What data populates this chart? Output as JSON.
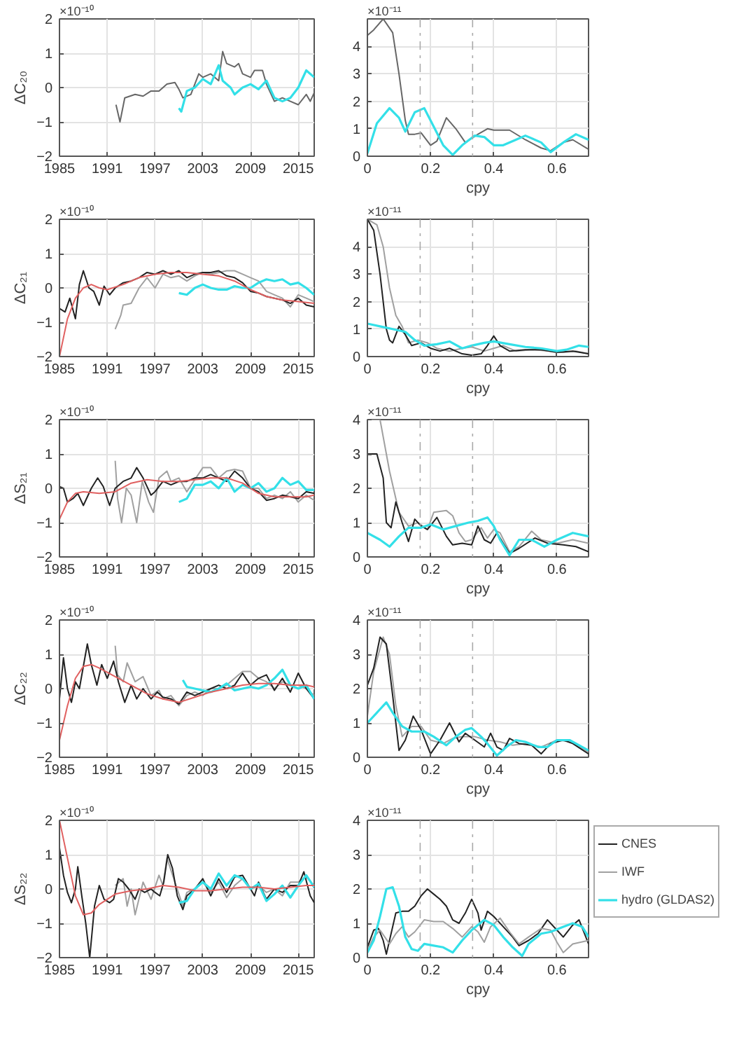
{
  "chart_data": [
    {
      "type": "line",
      "ylabel": "ΔC₂₀",
      "annotations": [
        "×10⁻¹⁰"
      ],
      "xlim": [
        1985,
        2017
      ],
      "xticks": [
        1985,
        1991,
        1997,
        2003,
        2009,
        2015
      ],
      "ylim": [
        -2,
        2
      ],
      "yticks": [
        -2,
        -1,
        0,
        1,
        2
      ],
      "grid": true,
      "series": [
        {
          "color": "#666666",
          "x": [
            1992.1,
            1992.6,
            1993.2,
            1994.5,
            1995.5,
            1996.5,
            1997.5,
            1998.5,
            1999.5,
            2000,
            2000.5,
            2001.5,
            2002.5,
            2003,
            2004,
            2005,
            2005.5,
            2006,
            2007,
            2007.5,
            2008,
            2009,
            2009.5,
            2010.5,
            2011,
            2012,
            2013,
            2014,
            2015,
            2016,
            2016.5,
            2017
          ],
          "values": [
            -0.5,
            -1.0,
            -0.3,
            -0.2,
            -0.25,
            -0.1,
            -0.1,
            0.1,
            0.15,
            -0.05,
            -0.3,
            -0.2,
            0.4,
            0.3,
            0.4,
            0.2,
            1.05,
            0.7,
            0.6,
            0.7,
            0.4,
            0.3,
            0.5,
            0.5,
            0.1,
            -0.4,
            -0.3,
            -0.4,
            -0.5,
            -0.2,
            -0.4,
            -0.15
          ]
        },
        {
          "color": "#33e0e8",
          "x": [
            2000,
            2000.3,
            2001,
            2002,
            2003,
            2004,
            2005,
            2005.5,
            2006.5,
            2007,
            2008,
            2009,
            2010,
            2011,
            2012,
            2013,
            2014,
            2015,
            2016,
            2017
          ],
          "values": [
            -0.6,
            -0.7,
            -0.1,
            0.0,
            0.25,
            0.1,
            0.65,
            0.2,
            0.0,
            -0.2,
            0.0,
            0.1,
            -0.05,
            0.2,
            -0.3,
            -0.4,
            -0.3,
            0.0,
            0.5,
            0.3
          ]
        }
      ]
    },
    {
      "type": "line",
      "xlabel": "cpy",
      "annotations": [
        "×10⁻¹¹"
      ],
      "xlim": [
        0,
        0.7
      ],
      "xticks": [
        0,
        0.2,
        0.4,
        0.6
      ],
      "ylim": [
        0,
        5
      ],
      "yticks": [
        0,
        1,
        2,
        3,
        4
      ],
      "grid": true,
      "ref_lines": [
        {
          "axis": "x",
          "value": 0.167,
          "color": "#aaaaaa",
          "line_style": "dashed"
        },
        {
          "axis": "x",
          "value": 0.333,
          "color": "#aaaaaa",
          "line_style": "dashed"
        }
      ],
      "series": [
        {
          "color": "#666666",
          "x": [
            0,
            0.02,
            0.05,
            0.08,
            0.1,
            0.12,
            0.13,
            0.15,
            0.17,
            0.2,
            0.22,
            0.25,
            0.28,
            0.31,
            0.35,
            0.38,
            0.4,
            0.45,
            0.5,
            0.55,
            0.58,
            0.62,
            0.65,
            0.7
          ],
          "values": [
            4.4,
            4.6,
            5.0,
            4.5,
            3.0,
            1.3,
            0.8,
            0.8,
            0.85,
            0.4,
            0.55,
            1.4,
            1.0,
            0.5,
            0.8,
            1.0,
            0.95,
            0.95,
            0.6,
            0.3,
            0.2,
            0.5,
            0.6,
            0.25
          ]
        },
        {
          "color": "#33e0e8",
          "x": [
            0,
            0.03,
            0.07,
            0.1,
            0.12,
            0.15,
            0.18,
            0.2,
            0.24,
            0.27,
            0.3,
            0.34,
            0.37,
            0.4,
            0.43,
            0.47,
            0.5,
            0.55,
            0.58,
            0.62,
            0.66,
            0.7
          ],
          "values": [
            0.1,
            1.2,
            1.75,
            1.4,
            0.9,
            1.6,
            1.75,
            1.3,
            0.4,
            0.05,
            0.4,
            0.75,
            0.7,
            0.4,
            0.4,
            0.6,
            0.75,
            0.5,
            0.15,
            0.5,
            0.8,
            0.6
          ]
        }
      ]
    },
    {
      "type": "line",
      "ylabel": "ΔC₂₁",
      "annotations": [
        "×10⁻¹⁰"
      ],
      "xlim": [
        1985,
        2017
      ],
      "xticks": [
        1985,
        1991,
        1997,
        2003,
        2009,
        2015
      ],
      "ylim": [
        -2,
        2
      ],
      "yticks": [
        -2,
        -1,
        0,
        1,
        2
      ],
      "grid": true,
      "series": [
        {
          "color": "#a0a0a0",
          "x": [
            1992,
            1992.7,
            1993,
            1994,
            1995,
            1996,
            1997,
            1998,
            1999,
            2000,
            2001,
            2002,
            2003,
            2004,
            2005,
            2006,
            2007,
            2008,
            2009,
            2010,
            2011,
            2012,
            2013,
            2014,
            2015,
            2016,
            2017
          ],
          "values": [
            -1.2,
            -0.8,
            -0.5,
            -0.45,
            0.0,
            0.3,
            0.0,
            0.4,
            0.3,
            0.35,
            0.2,
            0.35,
            0.45,
            0.4,
            0.45,
            0.5,
            0.5,
            0.4,
            0.3,
            0.2,
            -0.1,
            -0.2,
            -0.3,
            -0.55,
            -0.2,
            -0.3,
            -0.4
          ]
        },
        {
          "color": "#222222",
          "x": [
            1985,
            1985.7,
            1986.3,
            1987,
            1987.5,
            1988,
            1988.7,
            1989.3,
            1990,
            1990.6,
            1991.3,
            1992,
            1993,
            1994,
            1995,
            1996,
            1997,
            1998,
            1999,
            2000,
            2001,
            2002,
            2003,
            2004,
            2005,
            2006,
            2007,
            2008,
            2009,
            2010,
            2011,
            2012,
            2013,
            2014,
            2015,
            2016,
            2017
          ],
          "values": [
            -0.6,
            -0.7,
            -0.3,
            -0.9,
            0.1,
            0.5,
            0.0,
            -0.1,
            -0.5,
            0.05,
            -0.2,
            0.0,
            0.15,
            0.2,
            0.3,
            0.45,
            0.4,
            0.5,
            0.4,
            0.5,
            0.3,
            0.4,
            0.45,
            0.45,
            0.5,
            0.35,
            0.3,
            0.15,
            -0.1,
            -0.15,
            -0.25,
            -0.3,
            -0.35,
            -0.45,
            -0.3,
            -0.5,
            -0.55
          ]
        },
        {
          "color": "#33e0e8",
          "x": [
            2000,
            2001,
            2002,
            2003,
            2004,
            2005,
            2006,
            2007,
            2008,
            2009,
            2010,
            2011,
            2012,
            2013,
            2014,
            2015,
            2016,
            2017
          ],
          "values": [
            -0.15,
            -0.2,
            0.0,
            0.1,
            0.0,
            -0.05,
            -0.05,
            0.05,
            0.0,
            0.0,
            0.15,
            0.25,
            0.2,
            0.25,
            0.1,
            0.15,
            0.0,
            -0.2
          ]
        },
        {
          "color": "#e06060",
          "x": [
            1985,
            1986,
            1987,
            1988,
            1989,
            1990,
            1991,
            1993,
            1995,
            1997,
            1999,
            2001,
            2003,
            2005,
            2007,
            2009,
            2011,
            2013,
            2015,
            2017
          ],
          "values": [
            -2.0,
            -0.9,
            -0.3,
            0.0,
            0.1,
            0.0,
            -0.05,
            0.1,
            0.3,
            0.4,
            0.45,
            0.45,
            0.4,
            0.35,
            0.2,
            -0.05,
            -0.25,
            -0.35,
            -0.4,
            -0.45
          ]
        }
      ]
    },
    {
      "type": "line",
      "xlabel": "cpy",
      "annotations": [
        "×10⁻¹¹"
      ],
      "xlim": [
        0,
        0.7
      ],
      "xticks": [
        0,
        0.2,
        0.4,
        0.6
      ],
      "ylim": [
        0,
        5
      ],
      "yticks": [
        0,
        1,
        2,
        3,
        4
      ],
      "grid": true,
      "ref_lines": [
        {
          "axis": "x",
          "value": 0.167,
          "color": "#aaaaaa",
          "line_style": "dashed"
        },
        {
          "axis": "x",
          "value": 0.333,
          "color": "#aaaaaa",
          "line_style": "dashed"
        }
      ],
      "series": [
        {
          "color": "#a0a0a0",
          "x": [
            0,
            0.03,
            0.05,
            0.07,
            0.09,
            0.11,
            0.13,
            0.16,
            0.19,
            0.22,
            0.26,
            0.3,
            0.33,
            0.37,
            0.4,
            0.43,
            0.47,
            0.52,
            0.58,
            0.62,
            0.66,
            0.7
          ],
          "values": [
            5.0,
            4.8,
            4.0,
            2.5,
            1.5,
            1.1,
            0.5,
            0.6,
            0.5,
            0.3,
            0.2,
            0.3,
            0.35,
            0.2,
            0.3,
            0.4,
            0.2,
            0.25,
            0.2,
            0.15,
            0.2,
            0.1
          ]
        },
        {
          "color": "#222222",
          "x": [
            0,
            0.02,
            0.04,
            0.06,
            0.07,
            0.08,
            0.1,
            0.12,
            0.14,
            0.17,
            0.2,
            0.23,
            0.26,
            0.3,
            0.33,
            0.36,
            0.38,
            0.4,
            0.42,
            0.45,
            0.5,
            0.55,
            0.6,
            0.65,
            0.7
          ],
          "values": [
            5.0,
            4.6,
            3.0,
            1.0,
            0.6,
            0.5,
            1.1,
            0.8,
            0.4,
            0.5,
            0.3,
            0.2,
            0.3,
            0.1,
            0.05,
            0.1,
            0.4,
            0.75,
            0.4,
            0.2,
            0.25,
            0.25,
            0.15,
            0.2,
            0.1
          ]
        },
        {
          "color": "#33e0e8",
          "x": [
            0,
            0.04,
            0.08,
            0.12,
            0.15,
            0.18,
            0.22,
            0.26,
            0.3,
            0.33,
            0.37,
            0.4,
            0.45,
            0.5,
            0.55,
            0.6,
            0.63,
            0.67,
            0.7
          ],
          "values": [
            1.2,
            1.1,
            1.0,
            0.9,
            0.6,
            0.4,
            0.45,
            0.55,
            0.3,
            0.4,
            0.5,
            0.55,
            0.45,
            0.35,
            0.3,
            0.2,
            0.25,
            0.4,
            0.35
          ]
        }
      ]
    },
    {
      "type": "line",
      "ylabel": "ΔS₂₁",
      "annotations": [
        "×10⁻¹⁰"
      ],
      "xlim": [
        1985,
        2017
      ],
      "xticks": [
        1985,
        1991,
        1997,
        2003,
        2009,
        2015
      ],
      "ylim": [
        -2,
        2
      ],
      "yticks": [
        -2,
        -1,
        0,
        1,
        2
      ],
      "grid": true,
      "series": [
        {
          "color": "#a0a0a0",
          "x": [
            1992,
            1992.3,
            1992.8,
            1993.4,
            1994,
            1994.7,
            1995.4,
            1996.2,
            1996.8,
            1997.5,
            1998.5,
            1999,
            2000,
            2001,
            2002,
            2003,
            2004,
            2005,
            2006,
            2007,
            2008,
            2009,
            2010,
            2011,
            2012,
            2013,
            2014,
            2015,
            2016,
            2017
          ],
          "values": [
            0.8,
            -0.3,
            -1.0,
            0.0,
            -0.2,
            -1.0,
            0.2,
            -0.4,
            -0.7,
            0.3,
            0.5,
            0.2,
            0.3,
            -0.1,
            0.25,
            0.6,
            0.6,
            0.3,
            0.5,
            0.55,
            0.5,
            0.0,
            0.0,
            -0.3,
            -0.2,
            -0.3,
            -0.1,
            -0.4,
            -0.2,
            -0.35
          ]
        },
        {
          "color": "#222222",
          "x": [
            1985,
            1985.5,
            1986,
            1986.7,
            1987.3,
            1988,
            1989,
            1989.8,
            1990.5,
            1991.3,
            1992,
            1993,
            1994,
            1994.7,
            1995.5,
            1996.5,
            1997,
            1998,
            1999,
            2000,
            2001,
            2002,
            2003,
            2004,
            2005,
            2006,
            2007,
            2008,
            2009,
            2010,
            2011,
            2012,
            2013,
            2014,
            2015,
            2016,
            2017
          ],
          "values": [
            0.05,
            0.0,
            -0.4,
            -0.3,
            -0.15,
            -0.5,
            0.0,
            0.3,
            0.05,
            -0.5,
            0.0,
            0.2,
            0.3,
            0.6,
            0.3,
            -0.2,
            -0.1,
            0.2,
            0.1,
            0.2,
            0.2,
            0.3,
            0.3,
            0.4,
            0.3,
            0.2,
            0.5,
            0.3,
            0.0,
            -0.1,
            -0.35,
            -0.3,
            -0.2,
            -0.25,
            -0.3,
            -0.1,
            -0.15
          ]
        },
        {
          "color": "#33e0e8",
          "x": [
            2000,
            2001,
            2002,
            2003,
            2004,
            2005,
            2006,
            2007,
            2008,
            2009,
            2010,
            2011,
            2012,
            2013,
            2014,
            2015,
            2016,
            2017
          ],
          "values": [
            -0.4,
            -0.3,
            0.1,
            0.1,
            0.2,
            0.0,
            0.3,
            -0.1,
            0.1,
            0.0,
            0.15,
            -0.1,
            0.0,
            0.3,
            0.1,
            0.2,
            -0.05,
            -0.05
          ]
        },
        {
          "color": "#e06060",
          "x": [
            1985,
            1986,
            1987,
            1988,
            1990,
            1992,
            1994,
            1996,
            1998,
            2000,
            2002,
            2004,
            2006,
            2008,
            2010,
            2012,
            2014,
            2016,
            2017
          ],
          "values": [
            -0.9,
            -0.4,
            -0.15,
            -0.1,
            -0.15,
            -0.1,
            0.15,
            0.25,
            0.2,
            0.2,
            0.25,
            0.3,
            0.3,
            0.15,
            -0.15,
            -0.25,
            -0.25,
            -0.25,
            -0.2
          ]
        }
      ]
    },
    {
      "type": "line",
      "xlabel": "cpy",
      "annotations": [
        "×10⁻¹¹"
      ],
      "xlim": [
        0,
        0.7
      ],
      "xticks": [
        0,
        0.2,
        0.4,
        0.6
      ],
      "ylim": [
        0,
        4
      ],
      "yticks": [
        0,
        1,
        2,
        3,
        4
      ],
      "grid": true,
      "ref_lines": [
        {
          "axis": "x",
          "value": 0.167,
          "color": "#aaaaaa",
          "line_style": "dashed"
        },
        {
          "axis": "x",
          "value": 0.333,
          "color": "#aaaaaa",
          "line_style": "dashed"
        }
      ],
      "series": [
        {
          "color": "#a0a0a0",
          "x": [
            0,
            0.04,
            0.07,
            0.1,
            0.13,
            0.16,
            0.19,
            0.21,
            0.25,
            0.27,
            0.29,
            0.31,
            0.33,
            0.36,
            0.38,
            0.4,
            0.42,
            0.45,
            0.48,
            0.52,
            0.55,
            0.6,
            0.65,
            0.7
          ],
          "values": [
            4.0,
            4.0,
            2.5,
            1.3,
            0.9,
            1.0,
            0.8,
            1.3,
            1.35,
            1.2,
            0.7,
            0.45,
            0.5,
            0.85,
            0.55,
            0.8,
            0.7,
            0.15,
            0.3,
            0.75,
            0.5,
            0.4,
            0.5,
            0.4
          ]
        },
        {
          "color": "#222222",
          "x": [
            0,
            0.03,
            0.05,
            0.06,
            0.075,
            0.09,
            0.11,
            0.13,
            0.15,
            0.17,
            0.19,
            0.22,
            0.25,
            0.27,
            0.3,
            0.33,
            0.35,
            0.37,
            0.39,
            0.41,
            0.43,
            0.45,
            0.48,
            0.53,
            0.57,
            0.62,
            0.66,
            0.7
          ],
          "values": [
            3.0,
            3.0,
            2.3,
            1.0,
            0.85,
            1.6,
            1.0,
            0.45,
            1.1,
            0.9,
            0.8,
            1.15,
            0.6,
            0.35,
            0.4,
            0.35,
            0.9,
            0.5,
            0.4,
            0.7,
            0.4,
            0.1,
            0.25,
            0.55,
            0.4,
            0.35,
            0.3,
            0.15
          ]
        },
        {
          "color": "#33e0e8",
          "x": [
            0,
            0.04,
            0.07,
            0.1,
            0.13,
            0.17,
            0.2,
            0.24,
            0.28,
            0.32,
            0.35,
            0.38,
            0.4,
            0.42,
            0.45,
            0.48,
            0.52,
            0.56,
            0.6,
            0.65,
            0.7
          ],
          "values": [
            0.7,
            0.5,
            0.3,
            0.6,
            0.85,
            0.85,
            0.95,
            0.8,
            0.9,
            1.0,
            1.05,
            1.15,
            0.9,
            0.5,
            0.05,
            0.5,
            0.5,
            0.3,
            0.5,
            0.7,
            0.6
          ]
        }
      ]
    },
    {
      "type": "line",
      "ylabel": "ΔC₂₂",
      "annotations": [
        "×10⁻¹⁰"
      ],
      "xlim": [
        1985,
        2017
      ],
      "xticks": [
        1985,
        1991,
        1997,
        2003,
        2009,
        2015
      ],
      "ylim": [
        -2,
        2
      ],
      "yticks": [
        -2,
        -1,
        0,
        1,
        2
      ],
      "grid": true,
      "series": [
        {
          "color": "#a0a0a0",
          "x": [
            1992,
            1992.3,
            1993,
            1993.5,
            1994.5,
            1995.5,
            1996.5,
            1997.5,
            1998,
            1999,
            2000,
            2001,
            2002,
            2003,
            2004,
            2005,
            2006,
            2007,
            2008,
            2009,
            2010,
            2011,
            2012,
            2013,
            2014,
            2015,
            2016,
            2017
          ],
          "values": [
            1.25,
            0.4,
            0.2,
            0.75,
            0.2,
            0.35,
            -0.2,
            -0.05,
            -0.3,
            -0.2,
            -0.5,
            -0.2,
            -0.1,
            -0.2,
            0.0,
            0.0,
            0.1,
            0.3,
            0.5,
            0.5,
            0.3,
            0.2,
            0.0,
            0.2,
            0.1,
            0.1,
            0.0,
            -0.2
          ]
        },
        {
          "color": "#222222",
          "x": [
            1985,
            1985.5,
            1986,
            1986.5,
            1987,
            1987.5,
            1988.5,
            1989,
            1989.7,
            1990.3,
            1991,
            1991.8,
            1992.4,
            1993.2,
            1994,
            1994.7,
            1995.5,
            1996.5,
            1997.3,
            1998,
            1999,
            2000,
            2001,
            2002,
            2003,
            2004,
            2005,
            2006,
            2007,
            2008,
            2009,
            2010,
            2011,
            2012,
            2013,
            2014,
            2015,
            2016,
            2017
          ],
          "values": [
            -0.3,
            0.9,
            0.0,
            -0.4,
            0.2,
            0.0,
            1.3,
            0.7,
            0.1,
            0.7,
            0.3,
            0.8,
            0.2,
            -0.4,
            0.1,
            -0.3,
            0.0,
            -0.3,
            -0.1,
            -0.25,
            -0.3,
            -0.45,
            -0.1,
            -0.2,
            -0.1,
            0.0,
            0.1,
            0.0,
            0.1,
            0.45,
            0.1,
            0.3,
            0.4,
            -0.05,
            0.3,
            -0.1,
            0.45,
            0.0,
            -0.3
          ]
        },
        {
          "color": "#33e0e8",
          "x": [
            2000.5,
            2001,
            2002,
            2003,
            2004,
            2005,
            2006,
            2007,
            2008,
            2009,
            2010,
            2011,
            2012,
            2013,
            2014,
            2015,
            2016,
            2017
          ],
          "values": [
            0.25,
            0.05,
            0.0,
            -0.05,
            -0.1,
            0.0,
            0.15,
            -0.05,
            0.0,
            0.05,
            0.0,
            0.1,
            0.3,
            0.55,
            0.1,
            0.0,
            0.1,
            -0.3
          ]
        },
        {
          "color": "#e06060",
          "x": [
            1985,
            1986,
            1987,
            1988,
            1989,
            1990,
            1992,
            1994,
            1996,
            1998,
            2000,
            2002,
            2004,
            2006,
            2008,
            2010,
            2012,
            2014,
            2016,
            2017
          ],
          "values": [
            -1.5,
            -0.5,
            0.3,
            0.65,
            0.7,
            0.6,
            0.35,
            0.1,
            -0.15,
            -0.3,
            -0.4,
            -0.25,
            -0.1,
            0.0,
            0.1,
            0.15,
            0.15,
            0.1,
            0.1,
            0.05
          ]
        }
      ]
    },
    {
      "type": "line",
      "xlabel": "cpy",
      "annotations": [
        "×10⁻¹¹"
      ],
      "xlim": [
        0,
        0.7
      ],
      "xticks": [
        0,
        0.2,
        0.4,
        0.6
      ],
      "ylim": [
        0,
        4
      ],
      "yticks": [
        0,
        1,
        2,
        3,
        4
      ],
      "grid": true,
      "ref_lines": [
        {
          "axis": "x",
          "value": 0.167,
          "color": "#aaaaaa",
          "line_style": "dashed"
        },
        {
          "axis": "x",
          "value": 0.333,
          "color": "#aaaaaa",
          "line_style": "dashed"
        }
      ],
      "series": [
        {
          "color": "#a0a0a0",
          "x": [
            0,
            0.02,
            0.05,
            0.07,
            0.09,
            0.11,
            0.14,
            0.17,
            0.2,
            0.24,
            0.27,
            0.3,
            0.34,
            0.38,
            0.42,
            0.46,
            0.5,
            0.55,
            0.6,
            0.65,
            0.7
          ],
          "values": [
            1.2,
            2.5,
            3.5,
            3.0,
            1.5,
            0.6,
            0.9,
            0.9,
            0.5,
            0.4,
            0.55,
            0.6,
            0.6,
            0.5,
            0.45,
            0.35,
            0.4,
            0.3,
            0.5,
            0.45,
            0.15
          ]
        },
        {
          "color": "#222222",
          "x": [
            0,
            0.02,
            0.04,
            0.06,
            0.08,
            0.1,
            0.12,
            0.145,
            0.17,
            0.2,
            0.23,
            0.26,
            0.29,
            0.31,
            0.34,
            0.37,
            0.39,
            0.41,
            0.43,
            0.45,
            0.48,
            0.52,
            0.55,
            0.58,
            0.62,
            0.65,
            0.7
          ],
          "values": [
            2.1,
            2.6,
            3.5,
            3.3,
            1.8,
            0.2,
            0.5,
            1.2,
            0.8,
            0.1,
            0.5,
            1.0,
            0.45,
            0.7,
            0.5,
            0.3,
            0.7,
            0.3,
            0.2,
            0.55,
            0.4,
            0.35,
            0.1,
            0.4,
            0.5,
            0.4,
            0.1
          ]
        },
        {
          "color": "#33e0e8",
          "x": [
            0,
            0.03,
            0.06,
            0.08,
            0.11,
            0.14,
            0.18,
            0.21,
            0.25,
            0.28,
            0.31,
            0.33,
            0.36,
            0.38,
            0.41,
            0.44,
            0.47,
            0.5,
            0.54,
            0.57,
            0.6,
            0.64,
            0.7
          ],
          "values": [
            1.0,
            1.3,
            1.6,
            1.3,
            0.9,
            0.75,
            0.75,
            0.6,
            0.35,
            0.6,
            0.8,
            0.85,
            0.6,
            0.4,
            0.05,
            0.3,
            0.5,
            0.45,
            0.3,
            0.3,
            0.5,
            0.5,
            0.2
          ]
        }
      ]
    },
    {
      "type": "line",
      "ylabel": "ΔS₂₂",
      "annotations": [
        "×10⁻¹⁰"
      ],
      "xlim": [
        1985,
        2017
      ],
      "xticks": [
        1985,
        1991,
        1997,
        2003,
        2009,
        2015
      ],
      "ylim": [
        -2,
        2
      ],
      "yticks": [
        -2,
        -1,
        0,
        1,
        2
      ],
      "grid": true,
      "series": [
        {
          "color": "#a0a0a0",
          "x": [
            1992,
            1993,
            1993.5,
            1994,
            1994.5,
            1995.5,
            1996.5,
            1997.5,
            1998,
            1998.5,
            1999.5,
            2000.5,
            2001,
            2002,
            2003,
            2004,
            2005,
            2006,
            2007,
            2008,
            2009,
            2010,
            2011,
            2012,
            2013,
            2014,
            2015,
            2016,
            2017
          ],
          "values": [
            0.1,
            0.3,
            -0.5,
            0.0,
            -0.75,
            0.2,
            -0.3,
            0.4,
            0.1,
            0.9,
            0.2,
            -0.5,
            -0.1,
            0.0,
            0.2,
            -0.1,
            0.2,
            -0.25,
            0.1,
            0.3,
            0.0,
            0.1,
            -0.1,
            0.0,
            -0.2,
            0.2,
            0.2,
            0.35,
            0.1
          ]
        },
        {
          "color": "#222222",
          "x": [
            1985,
            1985.5,
            1986,
            1986.5,
            1987,
            1987.3,
            1987.8,
            1988.3,
            1988.8,
            1989.4,
            1990,
            1990.6,
            1991.3,
            1991.8,
            1992.4,
            1993,
            1993.7,
            1994.5,
            1995,
            1995.7,
            1996.5,
            1997,
            1997.6,
            1998.1,
            1998.6,
            1999.2,
            1999.8,
            2000.5,
            2001,
            2002,
            2003,
            2004,
            2005,
            2006,
            2007,
            2008,
            2009,
            2009.5,
            2010,
            2011,
            2012,
            2013,
            2014,
            2015,
            2015.7,
            2016.5,
            2017
          ],
          "values": [
            1.2,
            0.4,
            -0.1,
            -0.4,
            0.0,
            0.65,
            -0.2,
            -1.0,
            -2.0,
            -0.5,
            0.1,
            -0.3,
            -0.4,
            -0.3,
            0.3,
            0.2,
            0.0,
            -0.3,
            0.0,
            -0.1,
            0.0,
            -0.1,
            -0.2,
            0.2,
            1.0,
            0.6,
            -0.2,
            -0.6,
            -0.2,
            0.0,
            0.3,
            -0.2,
            0.3,
            -0.1,
            0.35,
            0.4,
            0.0,
            -0.2,
            0.2,
            -0.3,
            0.0,
            -0.1,
            0.1,
            0.1,
            0.5,
            -0.2,
            -0.4
          ]
        },
        {
          "color": "#33e0e8",
          "x": [
            2000,
            2001,
            2002,
            2003,
            2004,
            2005,
            2006,
            2007,
            2008,
            2009,
            2010,
            2011,
            2012,
            2013,
            2014,
            2015,
            2016,
            2017
          ],
          "values": [
            -0.4,
            -0.35,
            0.0,
            0.2,
            0.0,
            0.45,
            0.1,
            0.4,
            0.3,
            0.0,
            0.15,
            -0.35,
            -0.15,
            0.1,
            -0.25,
            0.1,
            0.4,
            0.05
          ]
        },
        {
          "color": "#e06060",
          "x": [
            1985,
            1986,
            1987,
            1988,
            1989,
            1990,
            1992,
            1994,
            1996,
            1998,
            2000,
            2002,
            2004,
            2006,
            2008,
            2010,
            2012,
            2014,
            2016,
            2017
          ],
          "values": [
            2.0,
            0.9,
            -0.2,
            -0.75,
            -0.7,
            -0.45,
            -0.15,
            -0.05,
            0.0,
            0.1,
            0.05,
            -0.05,
            -0.05,
            0.0,
            0.05,
            0.05,
            0.0,
            0.05,
            0.1,
            0.1
          ]
        }
      ]
    },
    {
      "type": "line",
      "xlabel": "cpy",
      "annotations": [
        "×10⁻¹¹"
      ],
      "xlim": [
        0,
        0.7
      ],
      "xticks": [
        0,
        0.2,
        0.4,
        0.6
      ],
      "ylim": [
        0,
        4
      ],
      "yticks": [
        0,
        1,
        2,
        3,
        4
      ],
      "grid": true,
      "legend": "right",
      "ref_lines": [
        {
          "axis": "x",
          "value": 0.167,
          "color": "#aaaaaa",
          "line_style": "dashed"
        },
        {
          "axis": "x",
          "value": 0.333,
          "color": "#aaaaaa",
          "line_style": "dashed"
        }
      ],
      "series": [
        {
          "name": "CNES",
          "color": "#222222",
          "x": [
            0,
            0.02,
            0.035,
            0.05,
            0.06,
            0.07,
            0.09,
            0.11,
            0.13,
            0.15,
            0.17,
            0.19,
            0.21,
            0.23,
            0.25,
            0.27,
            0.29,
            0.31,
            0.33,
            0.35,
            0.36,
            0.38,
            0.4,
            0.43,
            0.46,
            0.48,
            0.51,
            0.54,
            0.57,
            0.6,
            0.62,
            0.65,
            0.67,
            0.7
          ],
          "values": [
            0.3,
            0.8,
            0.85,
            0.5,
            0.1,
            0.5,
            1.3,
            1.35,
            1.35,
            1.5,
            1.8,
            2.0,
            1.85,
            1.7,
            1.5,
            1.1,
            1.0,
            1.3,
            1.7,
            1.3,
            0.8,
            1.35,
            1.2,
            0.9,
            0.6,
            0.35,
            0.5,
            0.7,
            1.1,
            0.8,
            0.6,
            0.95,
            1.1,
            0.4
          ]
        },
        {
          "name": "IWF",
          "color": "#a0a0a0",
          "x": [
            0,
            0.02,
            0.04,
            0.07,
            0.09,
            0.11,
            0.13,
            0.15,
            0.18,
            0.21,
            0.24,
            0.27,
            0.3,
            0.33,
            0.35,
            0.37,
            0.39,
            0.42,
            0.45,
            0.48,
            0.51,
            0.55,
            0.58,
            0.6,
            0.62,
            0.65,
            0.7
          ],
          "values": [
            0.2,
            0.6,
            0.8,
            0.4,
            0.7,
            0.9,
            0.6,
            0.75,
            1.1,
            1.05,
            1.05,
            0.85,
            0.6,
            0.9,
            0.75,
            0.45,
            0.9,
            1.15,
            0.75,
            0.4,
            0.6,
            0.85,
            0.8,
            0.45,
            0.15,
            0.4,
            0.5
          ]
        },
        {
          "name": "hydro (GLDAS2)",
          "color": "#33e0e8",
          "x": [
            0,
            0.02,
            0.04,
            0.06,
            0.08,
            0.1,
            0.12,
            0.14,
            0.16,
            0.18,
            0.21,
            0.24,
            0.27,
            0.3,
            0.33,
            0.37,
            0.4,
            0.43,
            0.46,
            0.49,
            0.51,
            0.55,
            0.58,
            0.62,
            0.65,
            0.68,
            0.7
          ],
          "values": [
            0.15,
            0.5,
            1.2,
            2.0,
            2.05,
            1.5,
            0.6,
            0.25,
            0.2,
            0.4,
            0.35,
            0.3,
            0.15,
            0.5,
            0.8,
            1.1,
            0.95,
            0.6,
            0.3,
            0.05,
            0.4,
            0.7,
            0.75,
            0.9,
            1.0,
            0.9,
            0.6
          ]
        }
      ]
    }
  ]
}
